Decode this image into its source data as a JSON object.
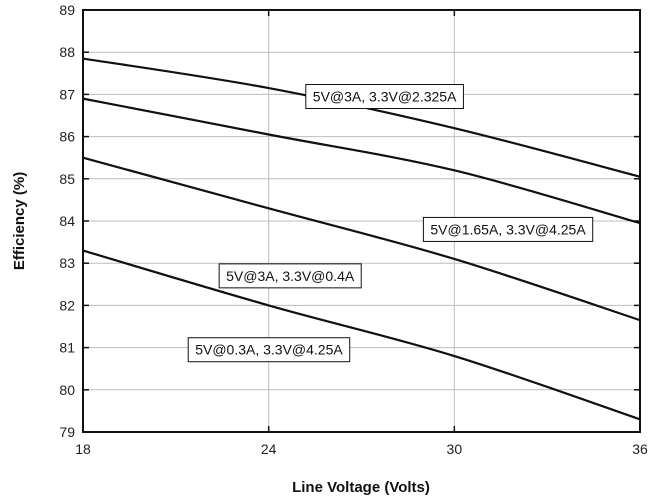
{
  "chart_data": {
    "type": "line",
    "title": "",
    "xlabel": "Line Voltage (Volts)",
    "ylabel": "Efficiency (%)",
    "xlim": [
      18,
      36
    ],
    "ylim": [
      79,
      89
    ],
    "xticks": [
      18,
      24,
      30,
      36
    ],
    "yticks": [
      79,
      80,
      81,
      82,
      83,
      84,
      85,
      86,
      87,
      88,
      89
    ],
    "grid": true,
    "legend": "inline-labels",
    "line_color": "#111111",
    "series": [
      {
        "name": "5V@3A, 3.3V@2.325A",
        "x": [
          18,
          24,
          30,
          36
        ],
        "y": [
          87.85,
          87.15,
          86.2,
          85.05
        ]
      },
      {
        "name": "5V@1.65A, 3.3V@4.25A",
        "x": [
          18,
          24,
          30,
          36
        ],
        "y": [
          86.9,
          86.05,
          85.2,
          83.95
        ]
      },
      {
        "name": "5V@3A, 3.3V@0.4A",
        "x": [
          18,
          24,
          30,
          36
        ],
        "y": [
          85.5,
          84.3,
          83.1,
          81.65
        ]
      },
      {
        "name": "5V@0.3A, 3.3V@4.25A",
        "x": [
          18,
          24,
          30,
          36
        ],
        "y": [
          83.3,
          82.0,
          80.8,
          79.3
        ]
      }
    ]
  }
}
